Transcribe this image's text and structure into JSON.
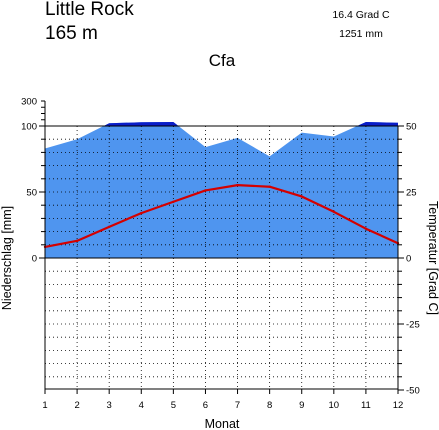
{
  "header": {
    "station": "Little Rock",
    "elevation": "165  m",
    "mean_temp": "16.4 Grad C",
    "annual_precip": "1251 mm",
    "climate_class": "Cfa"
  },
  "chart_data": {
    "type": "line",
    "categories": [
      "1",
      "2",
      "3",
      "4",
      "5",
      "6",
      "7",
      "8",
      "9",
      "10",
      "11",
      "12"
    ],
    "xlabel": "Monat",
    "ylabel_left": "Niederschlag [mm]",
    "ylabel_right": "Temperatur [Grad C]",
    "precip_ticks": [
      "300",
      "100",
      "50",
      "0"
    ],
    "temp_ticks": [
      "50",
      "25",
      "0",
      "-25",
      "-50"
    ],
    "temp_ylim": [
      -50,
      50
    ],
    "precip_scale": "0-100 mm linear (2 mm per 1 °C), 100-300 mm compressed",
    "grid": true,
    "series": [
      {
        "kind": "precipitation",
        "unit": "mm",
        "color": "#4f95ef",
        "excess_color": "#0a1dc8",
        "values": [
          83,
          90,
          122,
          130,
          132,
          84,
          91,
          77,
          95,
          92,
          132,
          126
        ]
      },
      {
        "kind": "temperature",
        "unit": "Grad C",
        "color": "#d40000",
        "values": [
          4.2,
          6.5,
          11.8,
          17.0,
          21.3,
          25.6,
          27.6,
          27.0,
          23.3,
          17.5,
          11.1,
          5.6
        ]
      }
    ]
  }
}
